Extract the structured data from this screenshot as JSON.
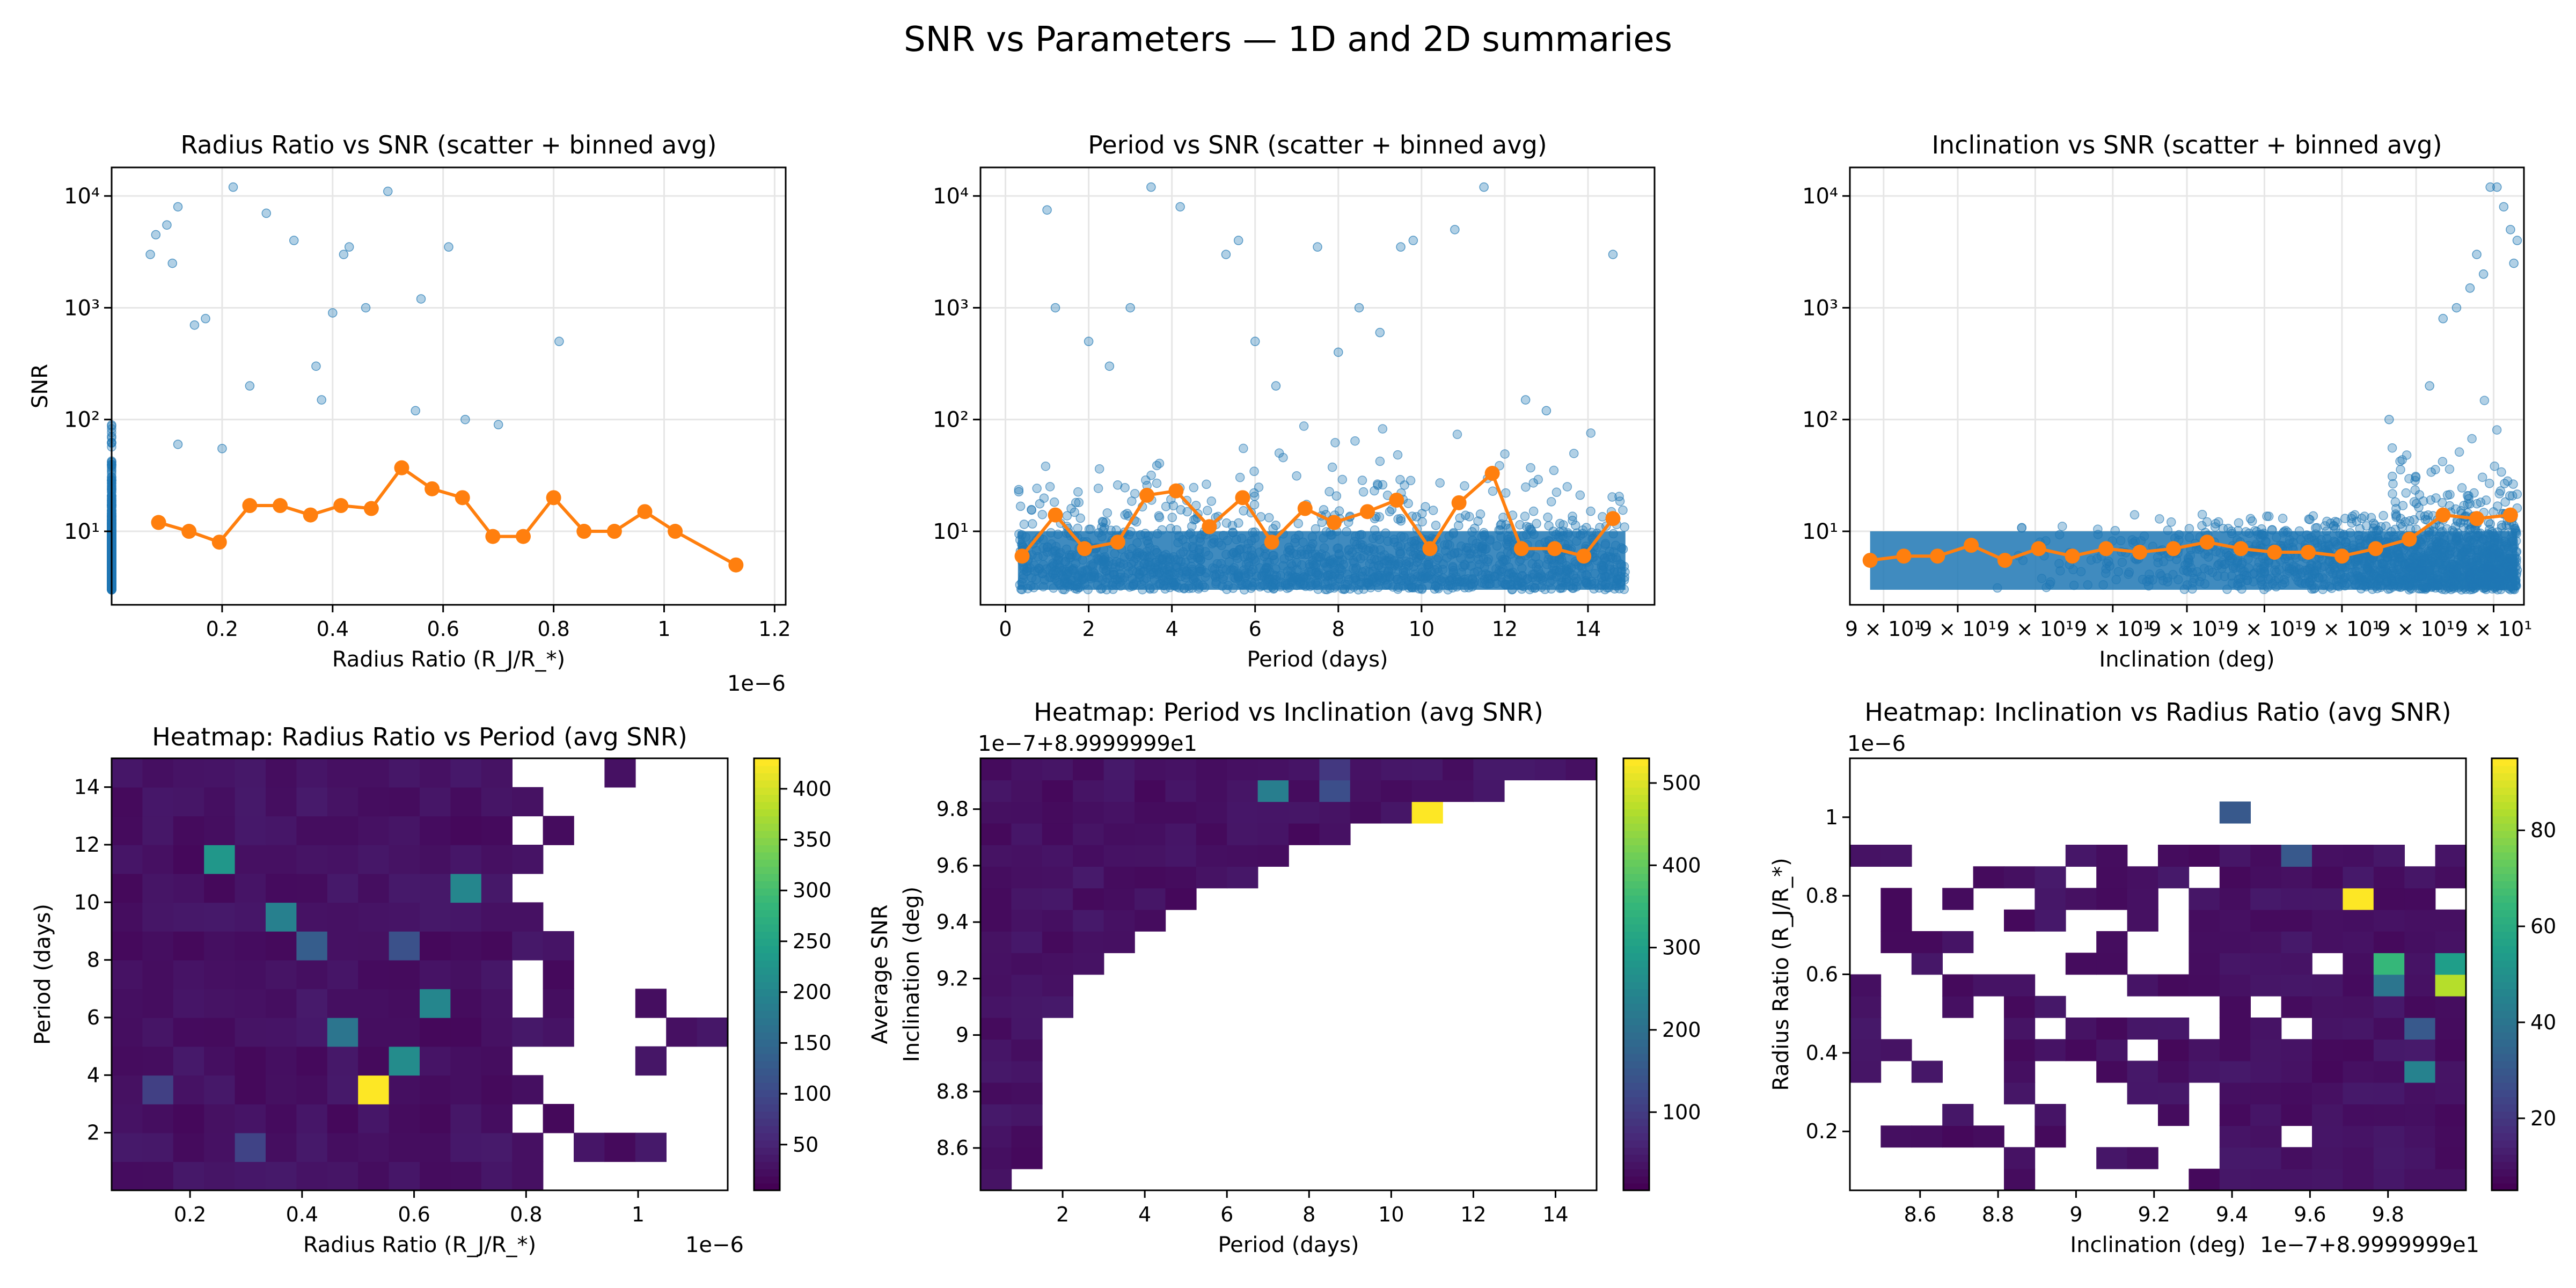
{
  "figure": {
    "title": "SNR vs Parameters — 1D and 2D summaries"
  },
  "colors": {
    "scatter": "#1f77b4",
    "binned": "#ff7f0e",
    "grid": "#e6e6e6",
    "viridis": [
      "#440154",
      "#482878",
      "#3e4a89",
      "#31688e",
      "#26828e",
      "#1f9e89",
      "#35b779",
      "#6ece58",
      "#b5de2b",
      "#fde725"
    ]
  },
  "chart_data": [
    {
      "type": "scatter",
      "title": "Radius Ratio vs SNR (scatter + binned avg)",
      "xlabel": "Radius Ratio (R_J/R_*)",
      "ylabel": "SNR",
      "x_offset_text": "1e−6",
      "xlim": [
        0.0,
        1.22e-06
      ],
      "ylim": [
        2.2,
        18000
      ],
      "yscale": "log",
      "xticks": [
        0.2,
        0.4,
        0.6,
        0.8,
        1.0,
        1.2
      ],
      "yticks": [
        "10¹",
        "10²",
        "10³",
        "10⁴"
      ],
      "grid": true,
      "scatter_series": {
        "name": "scatter",
        "x_range": [
          6e-08,
          7.7e-07
        ],
        "y_min": 3,
        "note_density": "dense"
      },
      "binned_avg": {
        "x": [
          0.085,
          0.14,
          0.195,
          0.25,
          0.305,
          0.36,
          0.415,
          0.47,
          0.525,
          0.58,
          0.635,
          0.69,
          0.745,
          0.8,
          0.855,
          0.91,
          0.965,
          1.02,
          1.13
        ],
        "y": [
          12,
          10,
          8,
          17,
          17,
          14,
          17,
          16,
          37,
          24,
          20,
          9,
          9,
          20,
          10,
          10,
          15,
          10,
          5
        ]
      },
      "outliers": {
        "x": [
          0.07,
          0.08,
          0.1,
          0.11,
          0.12,
          0.15,
          0.17,
          0.22,
          0.28,
          0.33,
          0.37,
          0.4,
          0.42,
          0.43,
          0.46,
          0.5,
          0.56,
          0.61,
          0.81,
          0.25,
          0.38,
          0.55,
          0.64,
          0.7,
          0.12,
          0.2
        ],
        "y": [
          3000,
          4500,
          5500,
          2500,
          8000,
          700,
          800,
          12000,
          7000,
          4000,
          300,
          900,
          3000,
          3500,
          1000,
          11000,
          1200,
          3500,
          500,
          200,
          150,
          120,
          100,
          90,
          60,
          55
        ]
      }
    },
    {
      "type": "scatter",
      "title": "Period vs SNR (scatter + binned avg)",
      "xlabel": "Period (days)",
      "ylabel": "",
      "xlim": [
        -0.6,
        15.6
      ],
      "ylim": [
        2.2,
        18000
      ],
      "yscale": "log",
      "xticks": [
        0,
        2,
        4,
        6,
        8,
        10,
        12,
        14
      ],
      "yticks": [
        "10¹",
        "10²",
        "10³",
        "10⁴"
      ],
      "grid": true,
      "scatter_series": {
        "name": "scatter",
        "x_range": [
          0.3,
          14.9
        ],
        "y_min": 3,
        "note_density": "uniform"
      },
      "binned_avg": {
        "x": [
          0.4,
          1.2,
          1.9,
          2.7,
          3.4,
          4.1,
          4.9,
          5.7,
          6.4,
          7.2,
          7.9,
          8.7,
          9.4,
          10.2,
          10.9,
          11.7,
          12.4,
          13.2,
          13.9,
          14.6
        ],
        "y": [
          6,
          14,
          7,
          8,
          21,
          23,
          11,
          20,
          8,
          16,
          12,
          15,
          19,
          7,
          18,
          33,
          7,
          7,
          6,
          13
        ]
      },
      "outliers": {
        "x": [
          1.0,
          1.2,
          2.0,
          3.0,
          3.5,
          4.2,
          5.3,
          5.6,
          6.0,
          7.5,
          8.5,
          9.0,
          9.5,
          9.8,
          10.8,
          11.5,
          14.6,
          2.5,
          6.5,
          8.0,
          12.5,
          13.0
        ],
        "y": [
          7500,
          1000,
          500,
          1000,
          12000,
          8000,
          3000,
          4000,
          500,
          3500,
          1000,
          600,
          3500,
          4000,
          5000,
          12000,
          3000,
          300,
          200,
          400,
          150,
          120
        ]
      }
    },
    {
      "type": "scatter",
      "title": "Inclination vs SNR (scatter + binned avg)",
      "xlabel": "Inclination (deg)",
      "ylabel": "",
      "xlim": [
        0,
        1
      ],
      "ylim": [
        2.2,
        18000
      ],
      "yscale": "log",
      "xticks": [
        "9 × 10¹",
        "9 × 10¹",
        "9 × 10¹",
        "9 × 10¹",
        "9 × 10¹",
        "9 × 10¹",
        "9 × 10¹",
        "9 × 10¹",
        "9 × 10¹"
      ],
      "yticks": [
        "10¹",
        "10²",
        "10³",
        "10⁴"
      ],
      "grid": true,
      "scatter_series": {
        "name": "scatter",
        "x_range": [
          0.03,
          0.99
        ],
        "y_min": 3,
        "note_density": "increasing"
      },
      "binned_avg": {
        "x": [
          0.03,
          0.08,
          0.13,
          0.18,
          0.23,
          0.28,
          0.33,
          0.38,
          0.43,
          0.48,
          0.53,
          0.58,
          0.63,
          0.68,
          0.73,
          0.78,
          0.83,
          0.88,
          0.93,
          0.98
        ],
        "y": [
          5.5,
          6,
          6,
          7.5,
          5.5,
          7,
          6,
          7,
          6.5,
          7,
          8,
          7,
          6.5,
          6.5,
          6,
          7,
          8.5,
          14,
          13,
          14
        ]
      },
      "outliers": {
        "x": [
          0.95,
          0.96,
          0.97,
          0.98,
          0.99,
          0.985,
          0.92,
          0.9,
          0.88,
          0.86,
          0.8,
          0.93,
          0.94
        ],
        "y": [
          12000,
          12000,
          8000,
          5000,
          4000,
          2500,
          1500,
          1000,
          800,
          200,
          100,
          3000,
          2000
        ]
      }
    },
    {
      "type": "heatmap",
      "title": "Heatmap: Radius Ratio vs Period (avg SNR)",
      "xlabel": "Radius Ratio (R_J/R_*)",
      "ylabel": "Period (days)",
      "x_offset_text": "1e−6",
      "xlim": [
        0.06,
        1.16
      ],
      "ylim": [
        0.0,
        15.0
      ],
      "xticks": [
        0.2,
        0.4,
        0.6,
        0.8,
        1.0
      ],
      "yticks": [
        2,
        4,
        6,
        8,
        10,
        12,
        14
      ],
      "nx": 20,
      "ny": 15,
      "colorbar": {
        "label": "Average SNR",
        "vmin": 5,
        "vmax": 430,
        "ticks": [
          50,
          100,
          150,
          200,
          250,
          300,
          350,
          400
        ]
      },
      "hot_cells": [
        {
          "ix": 8,
          "iy": 3,
          "v": 430
        },
        {
          "ix": 3,
          "iy": 11,
          "v": 230
        },
        {
          "ix": 9,
          "iy": 4,
          "v": 210
        },
        {
          "ix": 5,
          "iy": 9,
          "v": 190
        },
        {
          "ix": 11,
          "iy": 10,
          "v": 200
        },
        {
          "ix": 10,
          "iy": 6,
          "v": 200
        },
        {
          "ix": 7,
          "iy": 5,
          "v": 170
        },
        {
          "ix": 6,
          "iy": 8,
          "v": 130
        },
        {
          "ix": 9,
          "iy": 8,
          "v": 110
        },
        {
          "ix": 4,
          "iy": 1,
          "v": 90
        },
        {
          "ix": 1,
          "iy": 3,
          "v": 85
        }
      ]
    },
    {
      "type": "heatmap",
      "title": "Heatmap: Period vs Inclination (avg SNR)",
      "xlabel": "Period (days)",
      "ylabel": "Inclination (deg)",
      "y_offset_text": "1e−7+8.9999999e1",
      "xlim": [
        0.0,
        15.0
      ],
      "ylim": [
        8.45,
        9.98
      ],
      "xticks": [
        2,
        4,
        6,
        8,
        10,
        12,
        14
      ],
      "yticks": [
        8.6,
        8.8,
        9.0,
        9.2,
        9.4,
        9.6,
        9.8
      ],
      "nx": 20,
      "ny": 20,
      "colorbar": {
        "label": "",
        "vmin": 5,
        "vmax": 530,
        "ticks": [
          100,
          200,
          300,
          400,
          500
        ]
      },
      "hot_cells": [
        {
          "ix": 14,
          "iy": 17,
          "v": 530
        },
        {
          "ix": 9,
          "iy": 18,
          "v": 230
        },
        {
          "ix": 11,
          "iy": 18,
          "v": 130
        },
        {
          "ix": 11,
          "iy": 19,
          "v": 90
        }
      ]
    },
    {
      "type": "heatmap",
      "title": "Heatmap: Inclination vs Radius Ratio (avg SNR)",
      "xlabel": "Inclination (deg)",
      "ylabel": "Radius Ratio (R_J/R_*)",
      "x_offset_text": "1e−7+8.9999999e1",
      "y_offset_text": "1e−6",
      "xlim": [
        8.42,
        10.0
      ],
      "ylim": [
        0.05,
        1.15
      ],
      "xticks": [
        8.6,
        8.8,
        9.0,
        9.2,
        9.4,
        9.6,
        9.8
      ],
      "yticks": [
        0.2,
        0.4,
        0.6,
        0.8,
        1.0
      ],
      "nx": 20,
      "ny": 20,
      "colorbar": {
        "label": "",
        "vmin": 5,
        "vmax": 95,
        "ticks": [
          20,
          40,
          60,
          80
        ]
      },
      "hot_cells": [
        {
          "ix": 16,
          "iy": 13,
          "v": 95
        },
        {
          "ix": 19,
          "iy": 9,
          "v": 85
        },
        {
          "ix": 17,
          "iy": 10,
          "v": 65
        },
        {
          "ix": 19,
          "iy": 10,
          "v": 55
        },
        {
          "ix": 18,
          "iy": 5,
          "v": 45
        },
        {
          "ix": 17,
          "iy": 9,
          "v": 40
        },
        {
          "ix": 12,
          "iy": 17,
          "v": 30
        },
        {
          "ix": 14,
          "iy": 15,
          "v": 30
        },
        {
          "ix": 18,
          "iy": 7,
          "v": 30
        }
      ]
    }
  ]
}
